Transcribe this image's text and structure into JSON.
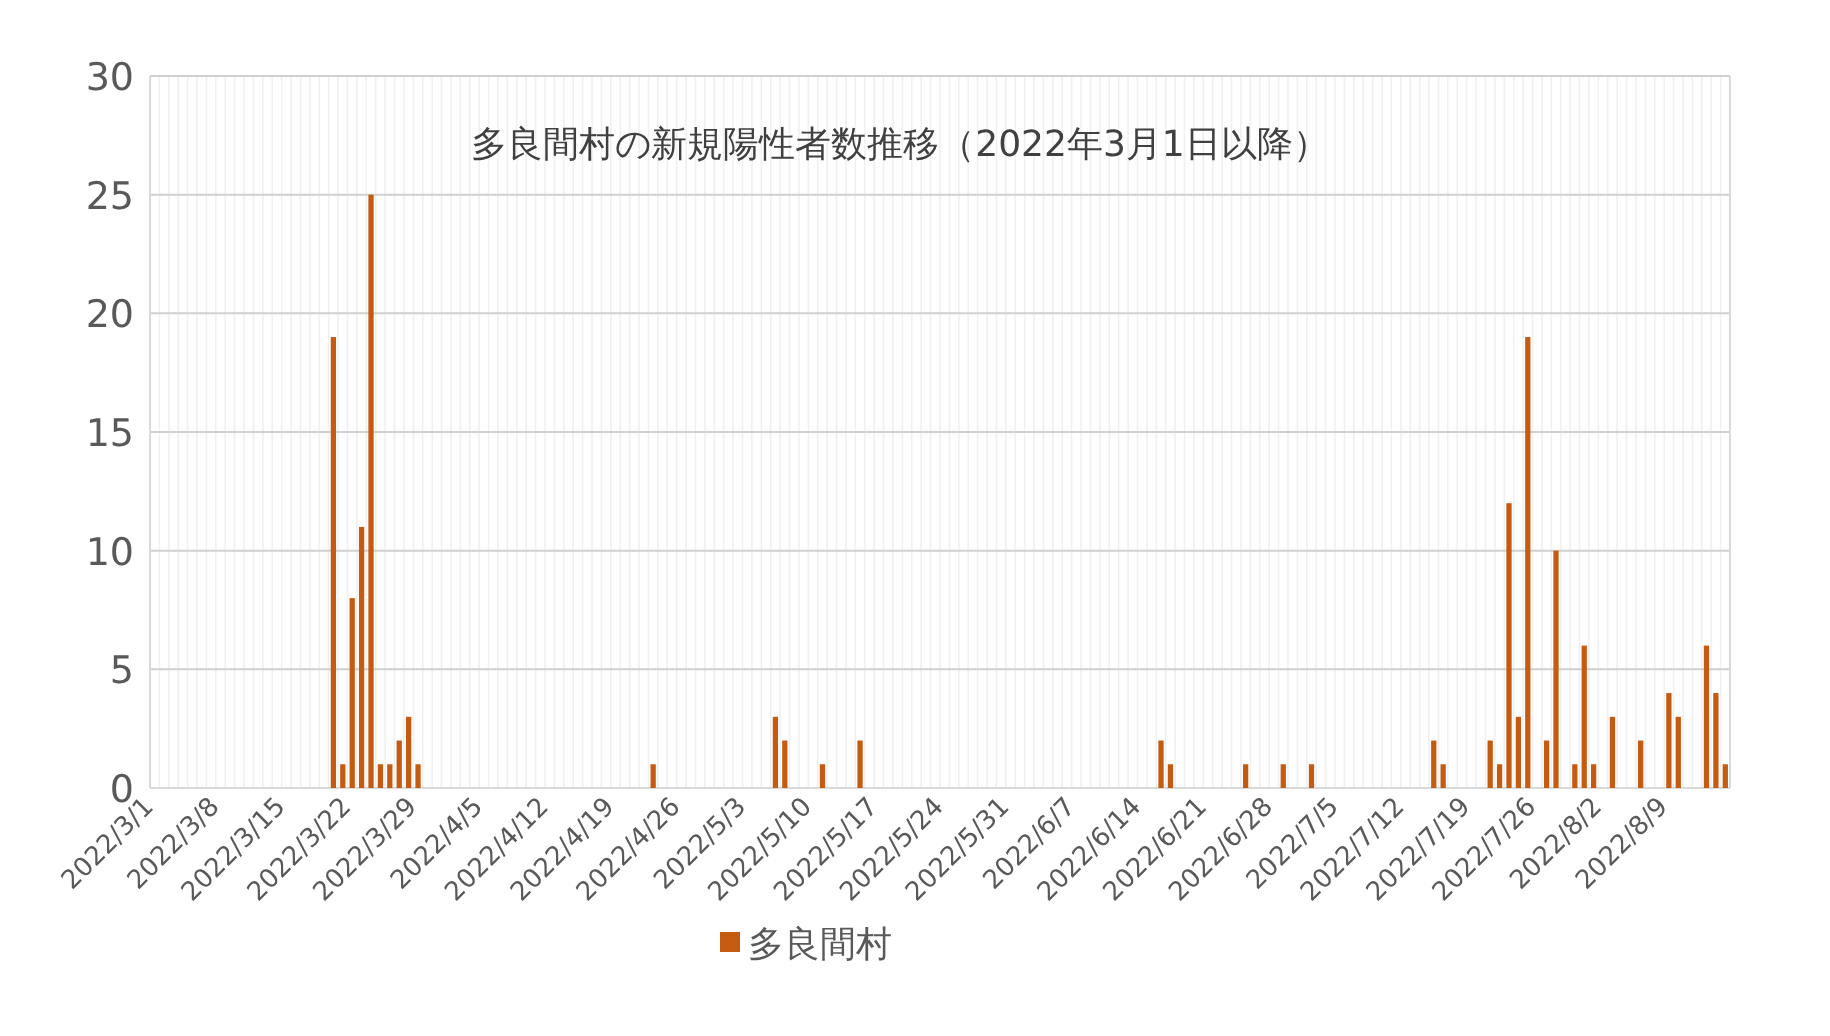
{
  "chart_data": {
    "type": "bar",
    "title": "多良間村の新規陽性者数推移（2022年3月1日以降）",
    "categories": [
      "2022/3/1",
      null,
      null,
      null,
      null,
      null,
      null,
      "2022/3/8",
      null,
      null,
      null,
      null,
      null,
      null,
      "2022/3/15",
      null,
      null,
      null,
      null,
      null,
      null,
      "2022/3/22",
      null,
      null,
      null,
      null,
      null,
      null,
      "2022/3/29",
      null,
      null,
      null,
      null,
      null,
      null,
      "2022/4/5",
      null,
      null,
      null,
      null,
      null,
      null,
      "2022/4/12",
      null,
      null,
      null,
      null,
      null,
      null,
      "2022/4/19",
      null,
      null,
      null,
      null,
      null,
      null,
      "2022/4/26",
      null,
      null,
      null,
      null,
      null,
      null,
      "2022/5/3",
      null,
      null,
      null,
      null,
      null,
      null,
      "2022/5/10",
      null,
      null,
      null,
      null,
      null,
      null,
      "2022/5/17",
      null,
      null,
      null,
      null,
      null,
      null,
      "2022/5/24",
      null,
      null,
      null,
      null,
      null,
      null,
      "2022/5/31",
      null,
      null,
      null,
      null,
      null,
      null,
      "2022/6/7",
      null,
      null,
      null,
      null,
      null,
      null,
      "2022/6/14",
      null,
      null,
      null,
      null,
      null,
      null,
      "2022/6/21",
      null,
      null,
      null,
      null,
      null,
      null,
      "2022/6/28",
      null,
      null,
      null,
      null,
      null,
      null,
      "2022/7/5",
      null,
      null,
      null,
      null,
      null,
      null,
      "2022/7/12",
      null,
      null,
      null,
      null,
      null,
      null,
      "2022/7/19",
      null,
      null,
      null,
      null,
      null,
      null,
      "2022/7/26",
      null,
      null,
      null,
      null,
      null,
      null,
      "2022/8/2",
      null,
      null,
      null,
      null,
      null,
      null,
      "2022/8/9",
      null,
      null,
      null,
      null,
      null,
      null
    ],
    "series": [
      {
        "name": "多良間村",
        "color": "#c55a11",
        "values": [
          0,
          0,
          0,
          0,
          0,
          0,
          0,
          0,
          0,
          0,
          0,
          0,
          0,
          0,
          0,
          0,
          0,
          0,
          0,
          19,
          1,
          8,
          11,
          25,
          1,
          1,
          2,
          3,
          1,
          0,
          0,
          0,
          0,
          0,
          0,
          0,
          0,
          0,
          0,
          0,
          0,
          0,
          0,
          0,
          0,
          0,
          0,
          0,
          0,
          0,
          0,
          0,
          0,
          1,
          0,
          0,
          0,
          0,
          0,
          0,
          0,
          0,
          0,
          0,
          0,
          0,
          3,
          2,
          0,
          0,
          0,
          1,
          0,
          0,
          0,
          2,
          0,
          0,
          0,
          0,
          0,
          0,
          0,
          0,
          0,
          0,
          0,
          0,
          0,
          0,
          0,
          0,
          0,
          0,
          0,
          0,
          0,
          0,
          0,
          0,
          0,
          0,
          0,
          0,
          0,
          0,
          0,
          2,
          1,
          0,
          0,
          0,
          0,
          0,
          0,
          0,
          1,
          0,
          0,
          0,
          1,
          0,
          0,
          1,
          0,
          0,
          0,
          0,
          0,
          0,
          0,
          0,
          0,
          0,
          0,
          0,
          2,
          1,
          0,
          0,
          0,
          0,
          2,
          1,
          12,
          3,
          19,
          0,
          2,
          10,
          0,
          1,
          6,
          1,
          0,
          3,
          0,
          0,
          2,
          0,
          0,
          4,
          3,
          0,
          0,
          6,
          4,
          1
        ]
      }
    ],
    "ylim": [
      0,
      30
    ],
    "yticks": [
      0,
      5,
      10,
      15,
      20,
      25,
      30
    ],
    "grid": true,
    "legend": "bottom"
  }
}
